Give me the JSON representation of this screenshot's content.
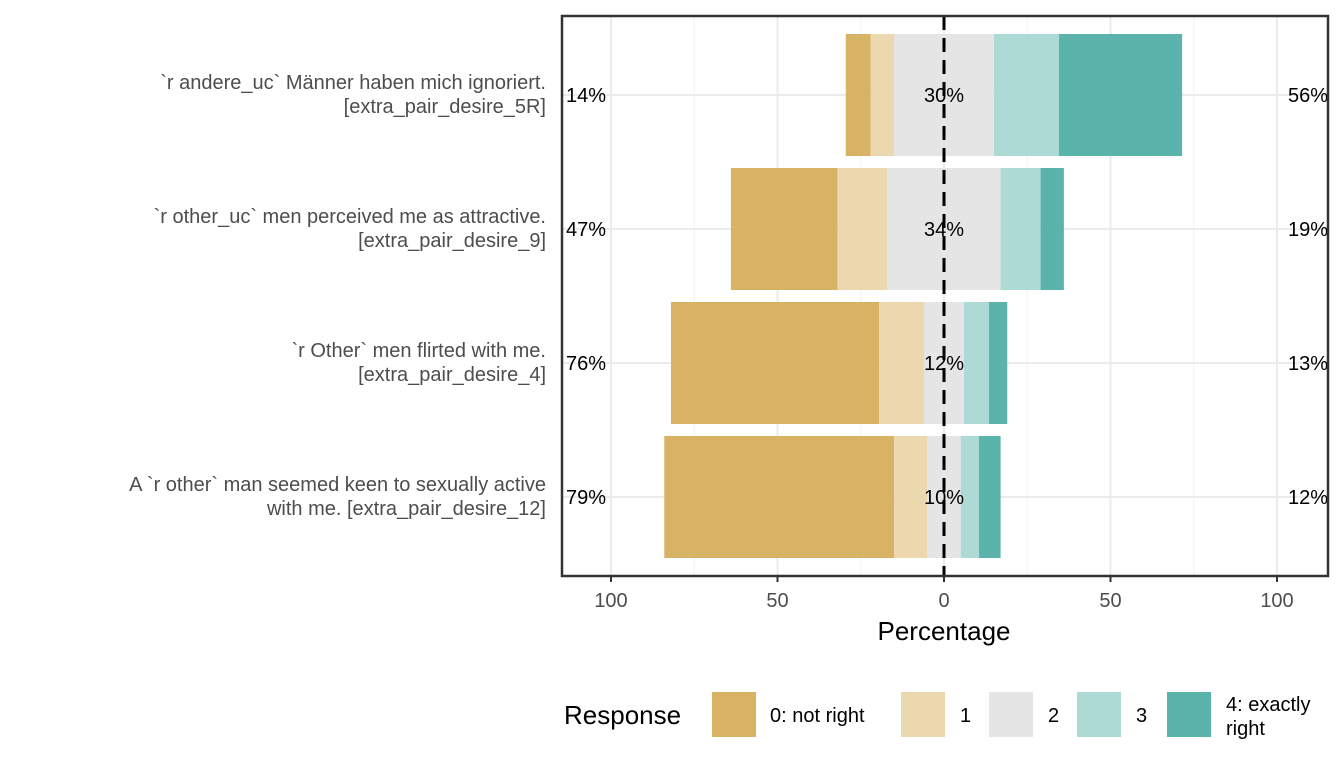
{
  "chart_data": {
    "type": "bar",
    "orientation": "horizontal-diverging",
    "title": "",
    "xlabel": "Percentage",
    "ylabel": "",
    "xlim": [
      -100,
      100
    ],
    "x_ticks": [
      -100,
      -50,
      0,
      50,
      100
    ],
    "x_tick_labels": [
      "100",
      "50",
      "0",
      "50",
      "100"
    ],
    "grid": true,
    "legend_placement": "bottom",
    "legend_title": "Response",
    "series": [
      {
        "name": "0: not right",
        "color": "#D8B365"
      },
      {
        "name": "1",
        "color": "#EBD8AE"
      },
      {
        "name": "2",
        "color": "#E5E5E5"
      },
      {
        "name": "3",
        "color": "#ADDAD5"
      },
      {
        "name": "4: exactly right",
        "color": "#5AB4AC"
      }
    ],
    "categories": [
      {
        "label_lines": [
          "`r andere_uc` Männer haben mich ignoriert.",
          "[extra_pair_desire_5R]"
        ],
        "values": [
          7.5,
          7,
          30,
          19.5,
          37
        ],
        "left_label": "14%",
        "center_label": "30%",
        "right_label": "56%"
      },
      {
        "label_lines": [
          "`r other_uc` men perceived me as attractive.",
          "[extra_pair_desire_9]"
        ],
        "values": [
          32,
          15,
          34,
          12,
          7
        ],
        "left_label": "47%",
        "center_label": "34%",
        "right_label": "19%"
      },
      {
        "label_lines": [
          "`r Other` men flirted with me.",
          "[extra_pair_desire_4]"
        ],
        "values": [
          62.5,
          13.5,
          12,
          7.5,
          5.5
        ],
        "left_label": "76%",
        "center_label": "12%",
        "right_label": "13%"
      },
      {
        "label_lines": [
          "A `r other` man seemed keen to sexually active",
          "with me. [extra_pair_desire_12]"
        ],
        "values": [
          69,
          10,
          10,
          5.5,
          6.5
        ],
        "left_label": "79%",
        "center_label": "10%",
        "right_label": "12%"
      }
    ]
  }
}
